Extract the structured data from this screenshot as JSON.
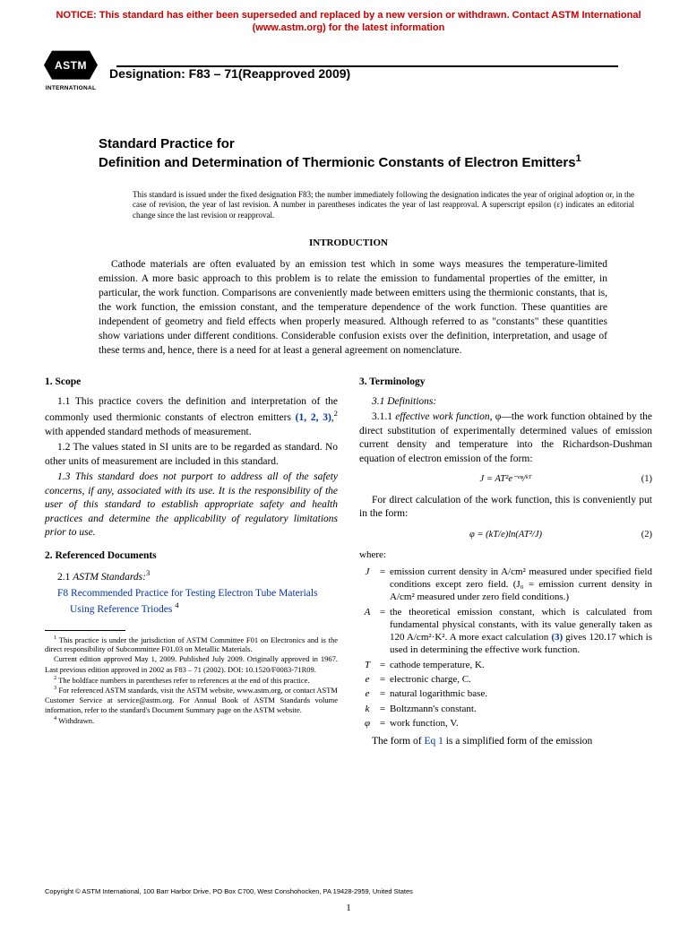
{
  "notice": "NOTICE: This standard has either been superseded and replaced by a new version or withdrawn. Contact ASTM International (www.astm.org) for the latest information",
  "logo": {
    "abbr": "ASTM",
    "label": "INTERNATIONAL"
  },
  "designation": "Designation: F83 – 71(Reapproved 2009)",
  "title_lead": "Standard Practice for",
  "title_main": "Definition and Determination of Thermionic Constants of Electron Emitters",
  "title_sup": "1",
  "issue_note": "This standard is issued under the fixed designation F83; the number immediately following the designation indicates the year of original adoption or, in the case of revision, the year of last revision. A number in parentheses indicates the year of last reapproval. A superscript epsilon (ε) indicates an editorial change since the last revision or reapproval.",
  "intro_head": "INTRODUCTION",
  "intro_text": "Cathode materials are often evaluated by an emission test which in some ways measures the temperature-limited emission. A more basic approach to this problem is to relate the emission to fundamental properties of the emitter, in particular, the work function. Comparisons are conveniently made between emitters using the thermionic constants, that is, the work function, the emission constant, and the temperature dependence of the work function. These quantities are independent of geometry and field effects when properly measured. Although referred to as \"constants\" these quantities show variations under different conditions. Considerable confusion exists over the definition, interpretation, and usage of these terms and, hence, there is a need for at least a general agreement on nomenclature.",
  "s1": {
    "head": "1. Scope",
    "p1a": "1.1 This practice covers the definition and interpretation of the commonly used thermionic constants of electron emitters ",
    "p1b": "(1, 2, 3)",
    "p1c": ",",
    "p1s": "2",
    "p1d": " with appended standard methods of measurement.",
    "p2": "1.2 The values stated in SI units are to be regarded as standard. No other units of measurement are included in this standard.",
    "p3": "1.3 This standard does not purport to address all of the safety concerns, if any, associated with its use. It is the responsibility of the user of this standard to establish appropriate safety and health practices and determine the applicability of regulatory limitations prior to use."
  },
  "s2": {
    "head": "2. Referenced Documents",
    "p1": "2.1 ",
    "p1i": "ASTM Standards:",
    "p1s": "3",
    "ref": "F8 Recommended Practice for Testing Electron Tube Materials Using Reference Triodes",
    "refs": "4"
  },
  "fn": {
    "f1a": "1",
    "f1": " This practice is under the jurisdiction of ASTM Committee F01 on Electronics and is the direct responsibility of Subcommittee F01.03 on Metallic Materials.",
    "f1b": "Current edition approved May 1, 2009. Published July 2009. Originally approved in 1967. Last previous edition approved in 2002 as F83 – 71 (2002). DOI: 10.1520/F0083-71R09.",
    "f2a": "2",
    "f2": " The boldface numbers in parentheses refer to references at the end of this practice.",
    "f3a": "3",
    "f3": " For referenced ASTM standards, visit the ASTM website, www.astm.org, or contact ASTM Customer Service at service@astm.org. For Annual Book of ASTM Standards volume information, refer to the standard's Document Summary page on the ASTM website.",
    "f4a": "4",
    "f4": " Withdrawn."
  },
  "s3": {
    "head": "3. Terminology",
    "p1": "3.1 Definitions:",
    "p2a": "3.1.1 ",
    "p2b": "effective work function,",
    "p2c": " φ—the work function obtained by the direct substitution of experimentally determined values of emission current density and temperature into the Richardson-Dushman equation of electron emission of the form:",
    "eq1": "J = AT²e⁻ᵉᵠ/ᵏᵀ",
    "eq1n": "(1)",
    "p3": "For direct calculation of the work function, this is conveniently put in the form:",
    "eq2": "φ = (kT/e)ln(AT²/J)",
    "eq2n": "(2)",
    "where": "where:",
    "defs": [
      {
        "sym": "J",
        "def": "emission current density in A/cm² measured under specified field conditions except zero field. (J₀ = emission current density in A/cm² measured under zero field conditions.)"
      },
      {
        "sym": "A",
        "def": "the theoretical emission constant, which is calculated from fundamental physical constants, with its value generally taken as 120 A/cm²·K². A more exact calculation (3) gives 120.17 which is used in determining the effective work function."
      },
      {
        "sym": "T",
        "def": "cathode temperature, K."
      },
      {
        "sym": "e",
        "def": "electronic charge, C."
      },
      {
        "sym": "e",
        "def": "natural logarithmic base."
      },
      {
        "sym": "k",
        "def": "Boltzmann's constant."
      },
      {
        "sym": "φ",
        "def": "work function, V."
      }
    ],
    "p4a": "The form of ",
    "p4b": "Eq 1",
    "p4c": " is a simplified form of the emission"
  },
  "copyright": "Copyright © ASTM International, 100 Barr Harbor Drive, PO Box C700, West Conshohocken, PA 19428-2959, United States",
  "pagenum": "1"
}
